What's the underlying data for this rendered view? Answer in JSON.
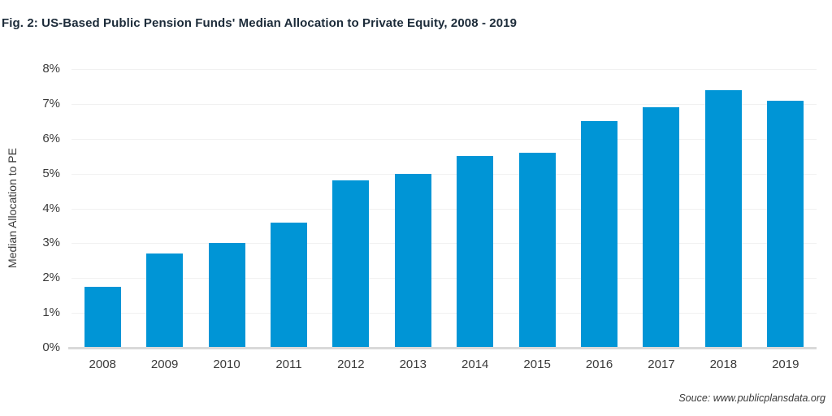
{
  "figure": {
    "title": "Fig. 2: US-Based Public Pension Funds' Median Allocation to Private Equity, 2008 - 2019",
    "source": "Souce: www.publicplansdata.org"
  },
  "chart_data": {
    "type": "bar",
    "title": "Fig. 2: US-Based Public Pension Funds' Median Allocation to Private Equity, 2008 - 2019",
    "categories": [
      "2008",
      "2009",
      "2010",
      "2011",
      "2012",
      "2013",
      "2014",
      "2015",
      "2016",
      "2017",
      "2018",
      "2019"
    ],
    "values": [
      1.75,
      2.7,
      3.0,
      3.6,
      4.8,
      5.0,
      5.5,
      5.6,
      6.5,
      6.9,
      7.4,
      7.1
    ],
    "xlabel": "",
    "ylabel": "Median Allocation to PE",
    "ylim": [
      0,
      8
    ],
    "ytick_step": 1,
    "ytick_suffix": "%",
    "grid": true,
    "legend": "none",
    "bar_color": "#0095d6",
    "gridline_color": "#f1f1f1",
    "axis_line_color": "#d9d9d9",
    "title_color": "#1c2b39",
    "tick_label_color": "#3a3a3a",
    "source": "Souce: www.publicplansdata.org"
  }
}
